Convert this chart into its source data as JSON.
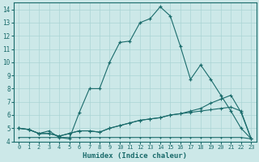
{
  "title": "",
  "xlabel": "Humidex (Indice chaleur)",
  "bg_color": "#cce8e8",
  "grid_color": "#aad4d4",
  "line_color": "#1a6b6b",
  "xlim": [
    -0.5,
    23.5
  ],
  "ylim": [
    4,
    14.5
  ],
  "xtick_labels": [
    "0",
    "1",
    "2",
    "3",
    "4",
    "5",
    "6",
    "7",
    "8",
    "9",
    "10",
    "11",
    "12",
    "13",
    "14",
    "15",
    "16",
    "17",
    "18",
    "19",
    "20",
    "21",
    "22",
    "23"
  ],
  "xtick_vals": [
    0,
    1,
    2,
    3,
    4,
    5,
    6,
    7,
    8,
    9,
    10,
    11,
    12,
    13,
    14,
    15,
    16,
    17,
    18,
    19,
    20,
    21,
    22,
    23
  ],
  "ytick_vals": [
    4,
    5,
    6,
    7,
    8,
    9,
    10,
    11,
    12,
    13,
    14
  ],
  "line1_x": [
    0,
    1,
    2,
    3,
    4,
    5,
    6,
    7,
    8,
    9,
    10,
    11,
    12,
    13,
    14,
    15,
    16,
    17,
    18,
    19,
    20,
    21,
    22,
    23
  ],
  "line1_y": [
    5.0,
    4.9,
    4.6,
    4.8,
    4.3,
    4.2,
    6.2,
    8.0,
    8.0,
    10.0,
    11.5,
    11.6,
    13.0,
    13.3,
    14.2,
    13.5,
    11.2,
    8.7,
    9.8,
    8.7,
    7.5,
    6.3,
    5.0,
    4.2
  ],
  "line2_x": [
    0,
    1,
    2,
    3,
    4,
    5,
    6,
    7,
    8,
    9,
    10,
    11,
    12,
    13,
    14,
    15,
    16,
    17,
    18,
    19,
    20,
    21,
    22,
    23
  ],
  "line2_y": [
    5.0,
    4.9,
    4.6,
    4.6,
    4.4,
    4.6,
    4.8,
    4.8,
    4.7,
    5.0,
    5.2,
    5.4,
    5.6,
    5.7,
    5.8,
    6.0,
    6.1,
    6.2,
    6.3,
    6.4,
    6.5,
    6.6,
    6.3,
    4.2
  ],
  "line3_x": [
    0,
    1,
    2,
    3,
    4,
    5,
    6,
    7,
    8,
    9,
    10,
    11,
    12,
    13,
    14,
    15,
    16,
    17,
    18,
    19,
    20,
    21,
    22,
    23
  ],
  "line3_y": [
    5.0,
    4.9,
    4.6,
    4.6,
    4.4,
    4.6,
    4.8,
    4.8,
    4.7,
    5.0,
    5.2,
    5.4,
    5.6,
    5.7,
    5.8,
    6.0,
    6.1,
    6.3,
    6.5,
    6.9,
    7.2,
    7.5,
    6.2,
    4.2
  ],
  "line4_x": [
    0,
    1,
    2,
    3,
    4,
    5,
    6,
    7,
    8,
    9,
    10,
    11,
    12,
    13,
    14,
    15,
    16,
    17,
    18,
    19,
    20,
    21,
    22,
    23
  ],
  "line4_y": [
    4.3,
    4.3,
    4.3,
    4.3,
    4.3,
    4.3,
    4.3,
    4.3,
    4.3,
    4.3,
    4.3,
    4.3,
    4.3,
    4.3,
    4.3,
    4.3,
    4.3,
    4.3,
    4.3,
    4.3,
    4.3,
    4.3,
    4.3,
    4.2
  ]
}
